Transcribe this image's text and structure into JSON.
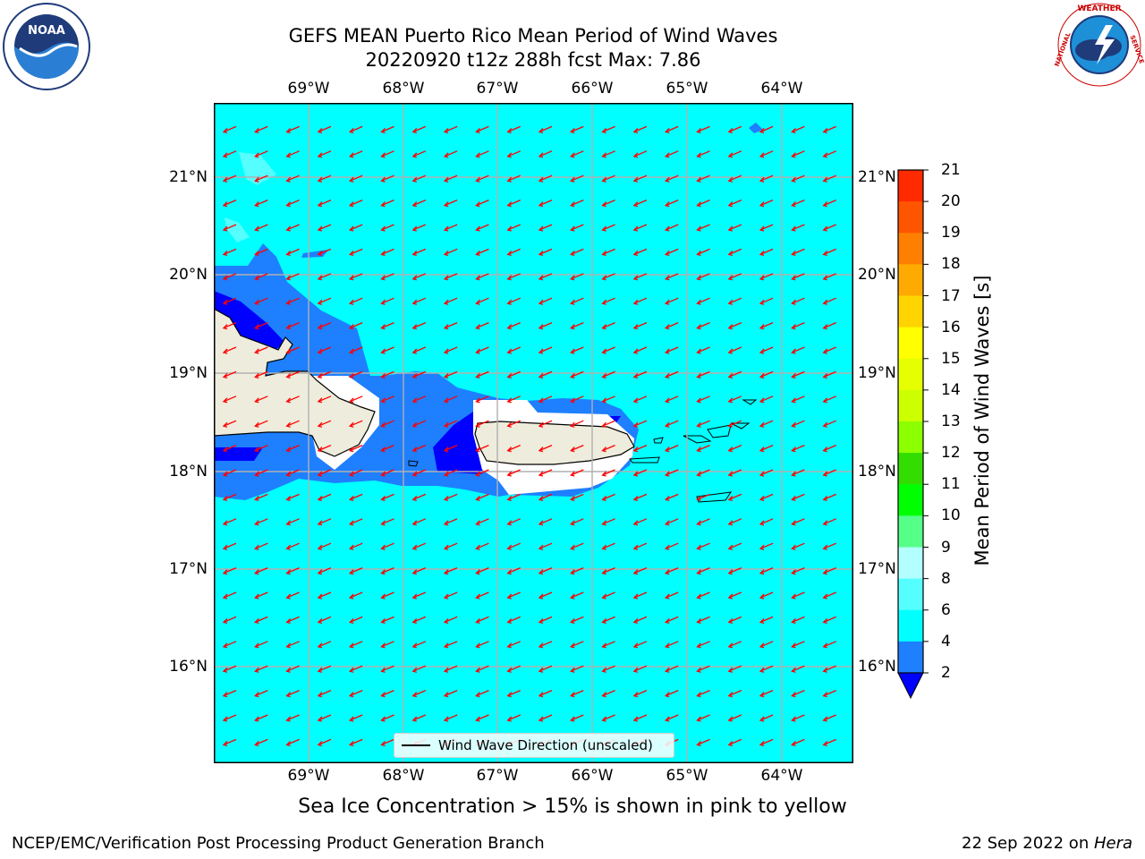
{
  "title": {
    "line1": "GEFS MEAN Puerto Rico Mean Period of Wind Waves",
    "line2": "20220920 t12z 288h fcst   Max: 7.86"
  },
  "logos": {
    "left": "noaa-logo",
    "left_text": "NOAA",
    "left_ring_text": "NATIONAL OCEANIC AND ATMOSPHERIC ADMINISTRATION · U.S. DEPARTMENT OF COMMERCE",
    "right": "nws-logo",
    "right_ring_text": "NATIONAL WEATHER SERVICE"
  },
  "map": {
    "lon_labels": [
      "69°W",
      "68°W",
      "67°W",
      "66°W",
      "65°W",
      "64°W"
    ],
    "lat_labels": [
      "21°N",
      "20°N",
      "19°N",
      "18°N",
      "17°N",
      "16°N"
    ],
    "colors": {
      "ocean": "#00ffff",
      "low_period": "#1e7fff",
      "very_low_period": "#0000ff",
      "land": "#eeecdc",
      "arrows": "#ff0000",
      "grid": "#b0b0b0"
    },
    "legend_label": "Wind Wave Direction (unscaled)"
  },
  "colorbar": {
    "label": "Mean Period of Wind Waves [s]",
    "ticks": [
      "21",
      "20",
      "19",
      "18",
      "17",
      "16",
      "15",
      "14",
      "13",
      "12",
      "11",
      "10",
      "9",
      "8",
      "6",
      "4",
      "2"
    ],
    "colors": [
      "#ff0000",
      "#ff2a00",
      "#ff5500",
      "#ff8000",
      "#ffaa00",
      "#ffd400",
      "#ffff00",
      "#e6ff00",
      "#ccff00",
      "#8cff00",
      "#33dd00",
      "#00ff00",
      "#55ff88",
      "#b3ffff",
      "#55ffff",
      "#00ffff",
      "#1e7fff",
      "#0000ff"
    ]
  },
  "subnote": "Sea Ice Concentration > 15% is shown in pink to yellow",
  "footer": {
    "left": "NCEP/EMC/Verification Post Processing Product Generation Branch",
    "right_date": "22 Sep 2022 on ",
    "right_host": "Hera"
  }
}
